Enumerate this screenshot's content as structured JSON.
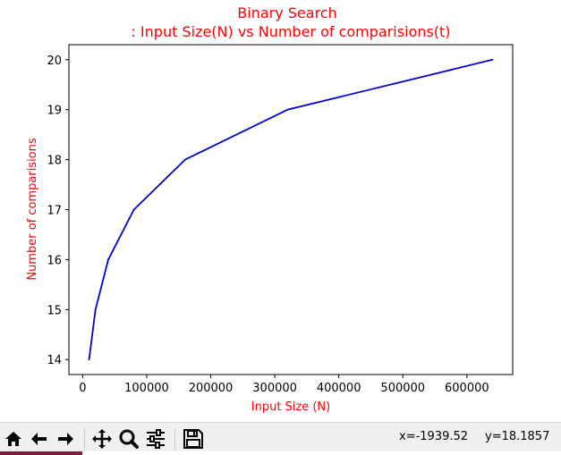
{
  "chart_data": {
    "type": "line",
    "title": "Binary Search",
    "subtitle": ": Input Size(N) vs Number of comparisions(t)",
    "xlabel": "Input Size (N)",
    "ylabel": "Number of comparisions",
    "x": [
      10000,
      20000,
      40000,
      80000,
      160000,
      320000,
      640000
    ],
    "series": [
      {
        "values": [
          14,
          15,
          16,
          17,
          18,
          19,
          20
        ],
        "color": "#0000cc"
      }
    ],
    "xlim": [
      -21500,
      671500
    ],
    "ylim": [
      13.7,
      20.3
    ],
    "xticks": [
      0,
      100000,
      200000,
      300000,
      400000,
      500000,
      600000
    ],
    "xtick_labels": [
      "0",
      "100000",
      "200000",
      "300000",
      "400000",
      "500000",
      "600000"
    ],
    "yticks": [
      14,
      15,
      16,
      17,
      18,
      19,
      20
    ],
    "ytick_labels": [
      "14",
      "15",
      "16",
      "17",
      "18",
      "19",
      "20"
    ],
    "grid": false,
    "label_color": "#ff0000"
  },
  "toolbar": {
    "x_readout": "x=-1939.52",
    "y_readout": "y=18.1857",
    "icons": [
      "home-icon",
      "back-arrow-icon",
      "forward-arrow-icon",
      "pan-icon",
      "zoom-icon",
      "configure-subplots-icon",
      "save-icon"
    ]
  }
}
